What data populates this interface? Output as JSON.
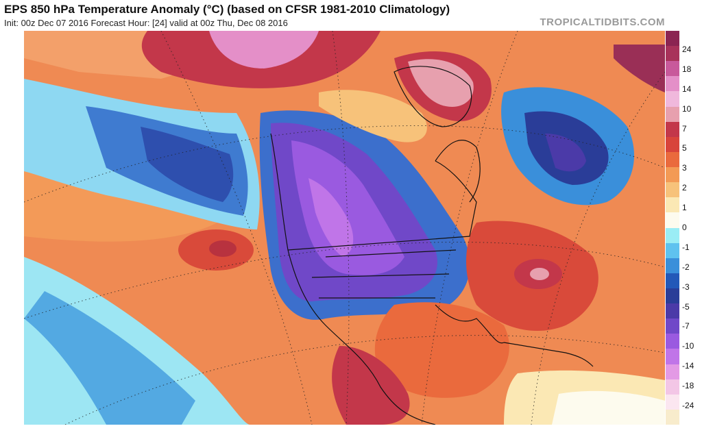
{
  "header": {
    "title": "EPS 850 hPa Temperature Anomaly (°C) (based on CFSR 1981-2010 Climatology)",
    "subtitle": "Init: 00z Dec 07 2016   Forecast Hour: [24]   valid at 00z Thu, Dec 08 2016",
    "watermark": "TROPICALTIDBITS.COM"
  },
  "colorbar": {
    "labels": [
      "24",
      "18",
      "14",
      "10",
      "7",
      "5",
      "3",
      "2",
      "1",
      "0",
      "-1",
      "-2",
      "-3",
      "-5",
      "-7",
      "-10",
      "-14",
      "-18",
      "-24"
    ],
    "colors": [
      "#8b2452",
      "#a8325a",
      "#c8599b",
      "#e48fc8",
      "#f0b8dc",
      "#e7a0ae",
      "#c3374a",
      "#d8443b",
      "#ea6a3d",
      "#f39a55",
      "#f7c27a",
      "#fbe8b4",
      "#fdfbee",
      "#9aedf5",
      "#5fc2ef",
      "#3a8fda",
      "#2358b8",
      "#2a3d98",
      "#4b3aa8",
      "#7048c8",
      "#9a5ae0",
      "#c075e8",
      "#e39ae5",
      "#f3c6e6",
      "#fbe6f0",
      "#f8eccc"
    ]
  },
  "map": {
    "regions": [
      {
        "name": "cold-anomaly-north-pacific",
        "color": "#3f6ec9"
      },
      {
        "name": "cold-anomaly-north-america",
        "color": "#7b4cd0"
      },
      {
        "name": "warm-anomaly-atlantic",
        "color": "#d94a3a"
      }
    ]
  }
}
